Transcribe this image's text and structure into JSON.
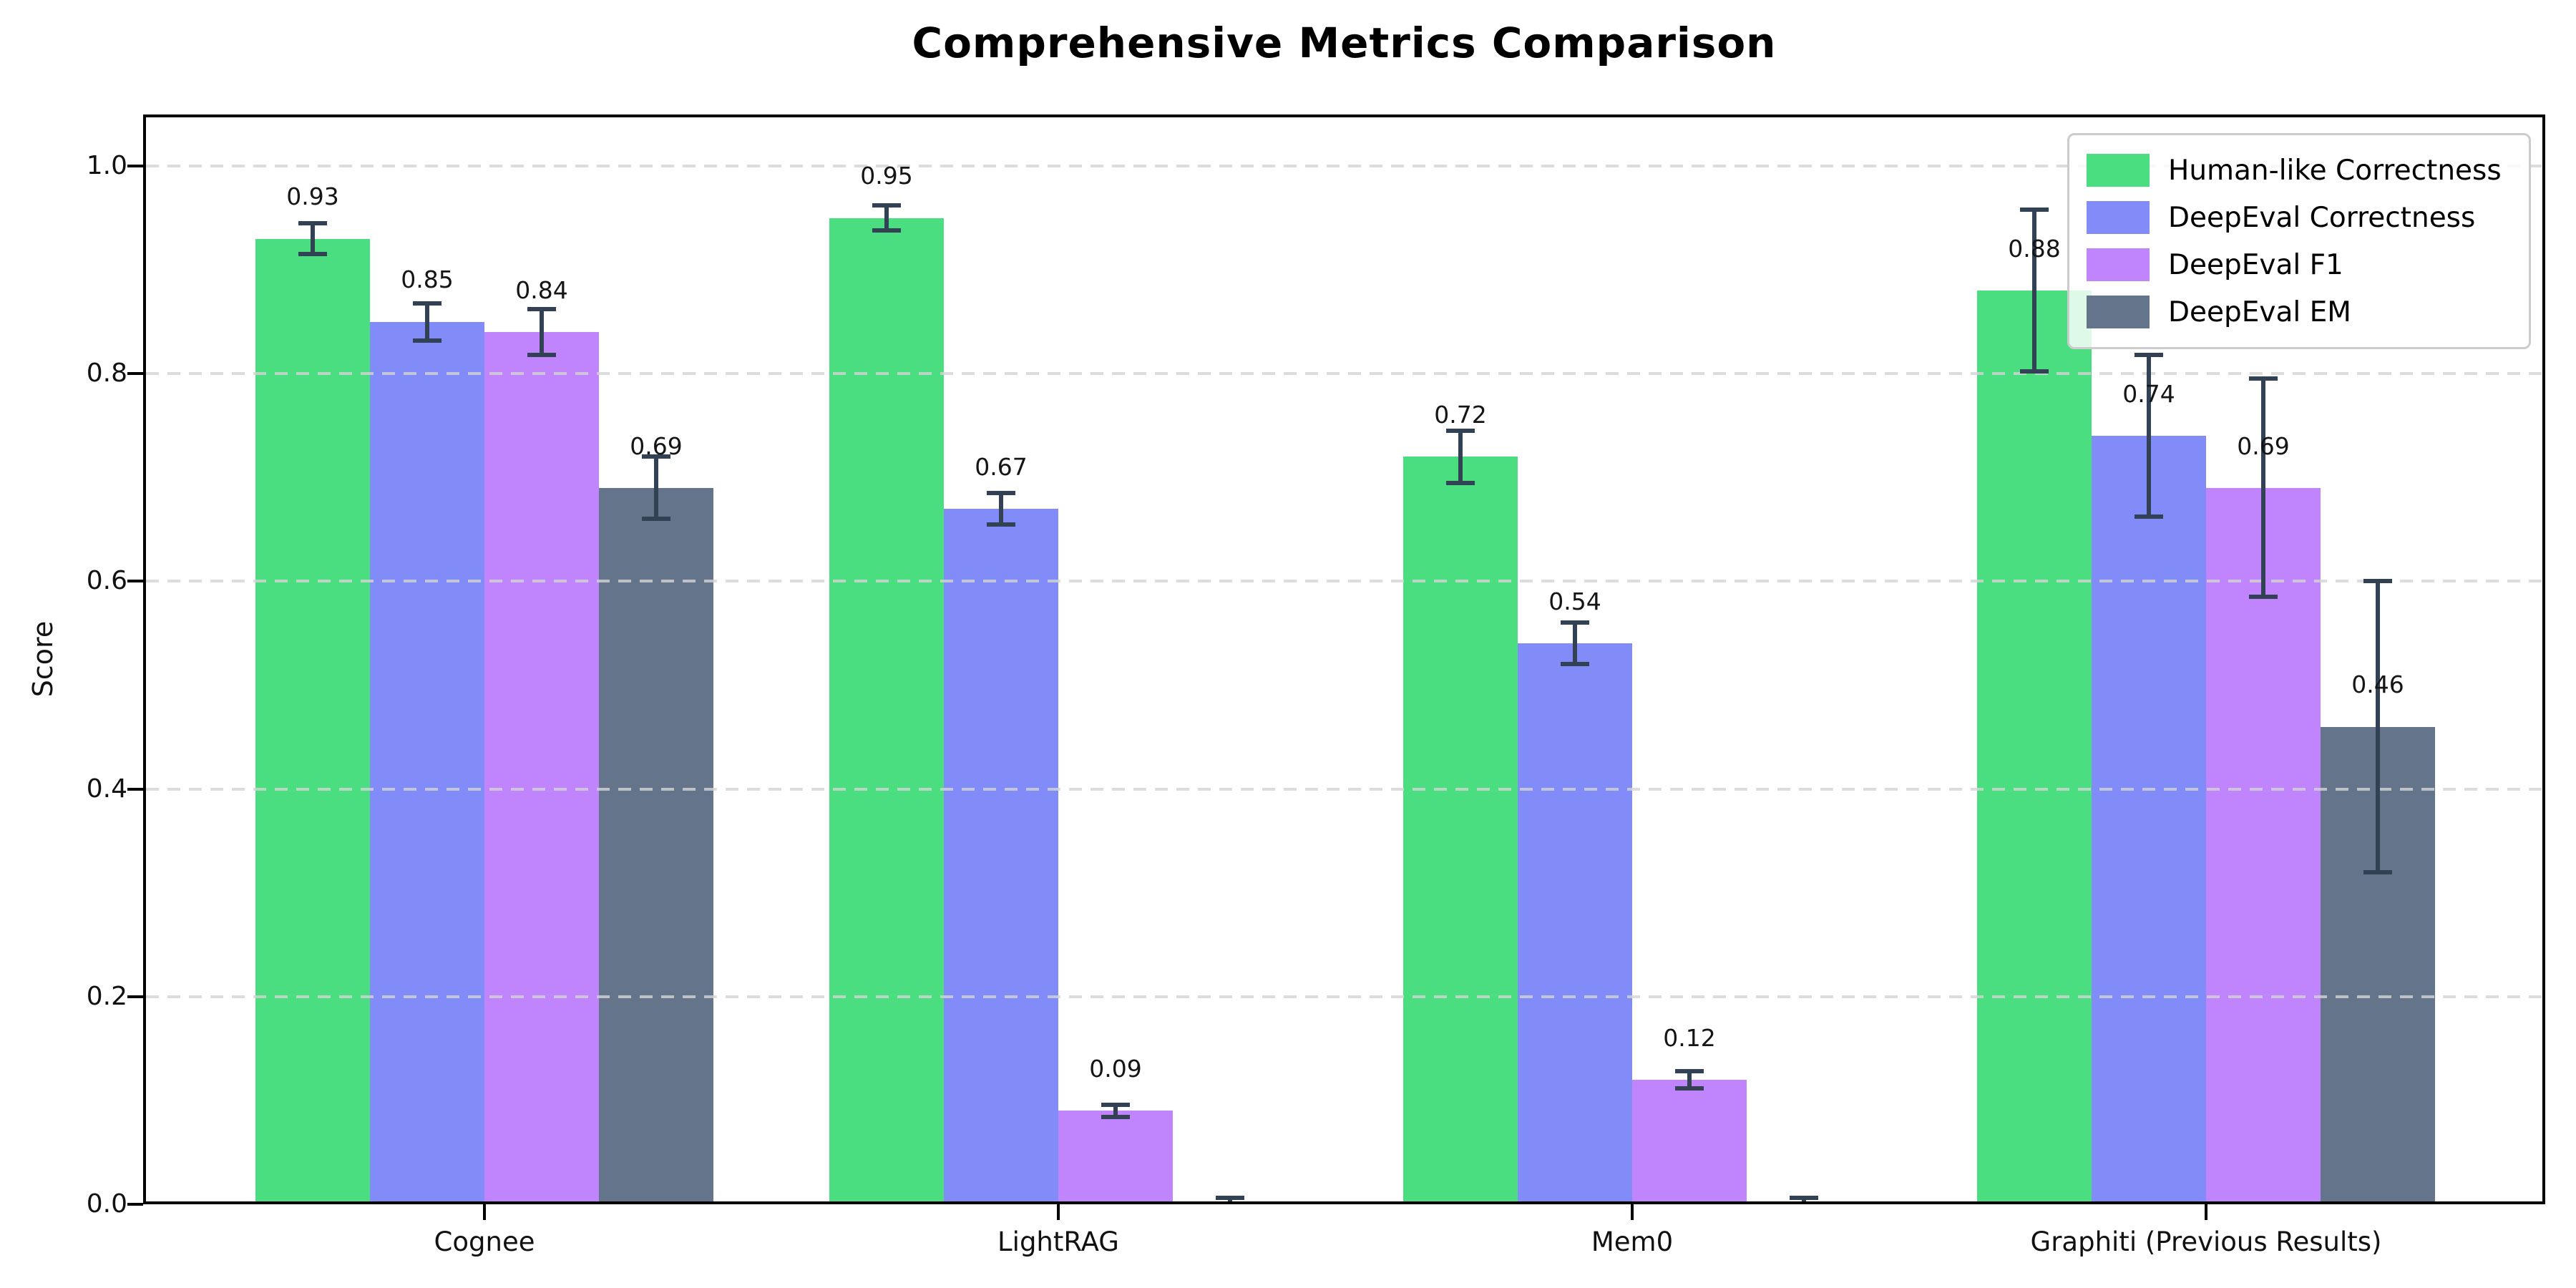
{
  "chart_data": {
    "type": "bar",
    "title": "Comprehensive Metrics Comparison",
    "ylabel": "Score",
    "categories": [
      "Cognee",
      "LightRAG",
      "Mem0",
      "Graphiti (Previous Results)"
    ],
    "series": [
      {
        "name": "Human-like Correctness",
        "color": "#4ade80",
        "values": [
          0.93,
          0.95,
          0.72,
          0.88
        ],
        "errors": [
          0.015,
          0.012,
          0.025,
          0.078
        ]
      },
      {
        "name": "DeepEval Correctness",
        "color": "#818cf8",
        "values": [
          0.85,
          0.67,
          0.54,
          0.74
        ],
        "errors": [
          0.018,
          0.015,
          0.02,
          0.078
        ]
      },
      {
        "name": "DeepEval F1",
        "color": "#c084fc",
        "values": [
          0.84,
          0.09,
          0.12,
          0.69
        ],
        "errors": [
          0.022,
          0.006,
          0.008,
          0.105
        ]
      },
      {
        "name": "DeepEval EM",
        "color": "#64748b",
        "values": [
          0.69,
          0.0,
          0.0,
          0.46
        ],
        "errors": [
          0.03,
          0.006,
          0.006,
          0.14
        ]
      }
    ],
    "value_label_format": "2-decimals",
    "zero_bars_unlabeled": true,
    "ylim": [
      0,
      1.05
    ],
    "yticks": [
      0.0,
      0.2,
      0.4,
      0.6,
      0.8,
      1.0
    ],
    "ytick_labels": [
      "0.0",
      "0.2",
      "0.4",
      "0.6",
      "0.8",
      "1.0"
    ],
    "grid": "horizontal-dashed-over-bars",
    "legend_position": "upper-right",
    "error_bar_color": "#334155",
    "axis_color": "#000000"
  }
}
